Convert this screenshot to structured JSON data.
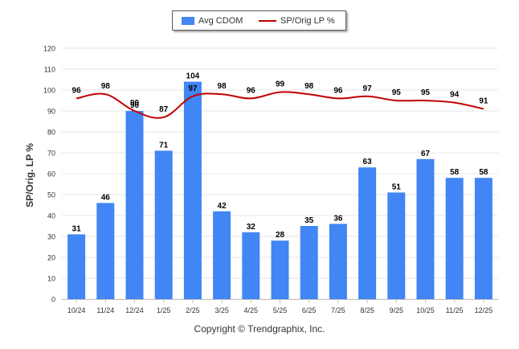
{
  "chart_data": {
    "type": "bar",
    "categories": [
      "10/24",
      "11/24",
      "12/24",
      "1/25",
      "2/25",
      "3/25",
      "4/25",
      "5/25",
      "6/25",
      "7/25",
      "8/25",
      "9/25",
      "10/25",
      "11/25",
      "12/25"
    ],
    "series": [
      {
        "name": "Avg CDOM",
        "type": "bar",
        "color": "#4285f4",
        "values": [
          31,
          46,
          90,
          71,
          104,
          42,
          32,
          28,
          35,
          36,
          63,
          51,
          67,
          58,
          58
        ]
      },
      {
        "name": "SP/Orig LP %",
        "type": "line",
        "color": "#c00000",
        "values": [
          96,
          98,
          90,
          87,
          97,
          98,
          96,
          99,
          98,
          96,
          97,
          95,
          95,
          94,
          91
        ]
      }
    ],
    "ylabel": "SP/Orig. LP %",
    "ylim": [
      0,
      120
    ],
    "yticks": [
      0,
      10,
      20,
      30,
      40,
      50,
      60,
      70,
      80,
      90,
      100,
      110,
      120
    ],
    "grid": true,
    "legend_position": "top-center"
  },
  "footer": {
    "copyright": "Copyright © Trendgraphix, Inc."
  }
}
